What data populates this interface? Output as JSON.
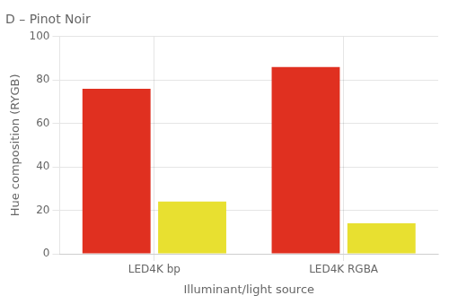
{
  "chart_data": {
    "type": "bar",
    "title": "D – Pinot Noir",
    "xlabel": "Illuminant/light source",
    "ylabel": "Hue composition (RYGB)",
    "categories": [
      "LED4K bp",
      "LED4K RGBA"
    ],
    "series": [
      {
        "color": "#E03020",
        "values": [
          76,
          86
        ]
      },
      {
        "color": "#E8E030",
        "values": [
          24,
          14
        ]
      }
    ],
    "ylim": [
      0,
      100
    ],
    "yticks": [
      0,
      20,
      40,
      60,
      80,
      100
    ],
    "grid": true
  }
}
